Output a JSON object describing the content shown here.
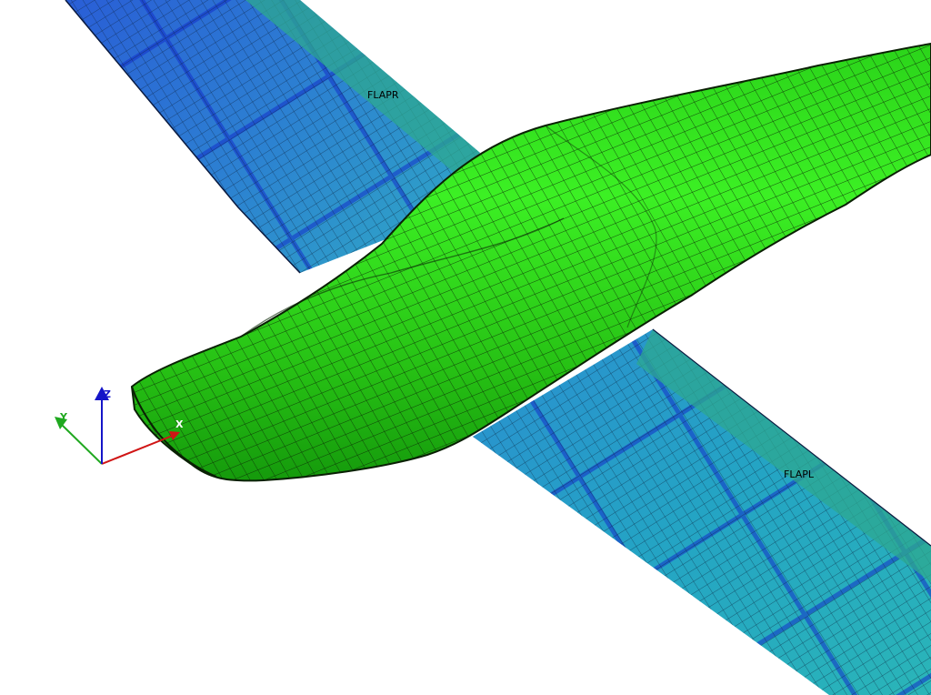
{
  "viewport": {
    "background": "#ffffff",
    "parts": [
      {
        "id": "wing-right",
        "label": "FLAPR",
        "label_color": "#7a3c7a",
        "color": "#2e6fd8",
        "edge_color": "#2ea890"
      },
      {
        "id": "wing-left",
        "label": "FLAPL",
        "label_color": "#6a2e6a",
        "color": "#27a0b8",
        "edge_color": "#2ea890"
      },
      {
        "id": "fuselage",
        "label": "",
        "color": "#32e61a",
        "mesh_color": "#0c2a06"
      }
    ],
    "triad": {
      "x": {
        "label": "X",
        "color": "#d01515"
      },
      "y": {
        "label": "Y",
        "color": "#1fa81f"
      },
      "z": {
        "label": "Z",
        "color": "#1515c8"
      }
    }
  }
}
